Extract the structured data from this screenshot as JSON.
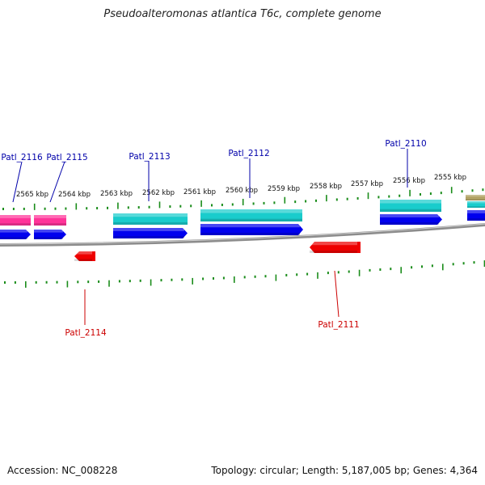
{
  "title": "Pseudoalteromonas atlantica T6c, complete genome",
  "accession_text": "Accession: NC_008228",
  "summary_text": "Topology: circular; Length: 5,187,005 bp; Genes: 4,364",
  "colors": {
    "pink": "#ff3399",
    "cyan": "#19cccc",
    "blue": "#0000ee",
    "red": "#ee0000",
    "olive": "#b3a466",
    "tick": "#1a8c1a",
    "backbone": "#8c8c8c",
    "label_top": "#0000aa",
    "label_bottom": "#cc0000"
  },
  "scale": {
    "kbp_labels": [
      "2565 kbp",
      "2564 kbp",
      "2563 kbp",
      "2562 kbp",
      "2561 kbp",
      "2560 kbp",
      "2559 kbp",
      "2558 kbp",
      "2557 kbp",
      "2556 kbp",
      "2555 kbp"
    ]
  },
  "genes_top": [
    {
      "label": "Patl_2116"
    },
    {
      "label": "Patl_2115"
    },
    {
      "label": "Patl_2113"
    },
    {
      "label": "Patl_2112"
    },
    {
      "label": "Patl_2110"
    }
  ],
  "genes_bottom": [
    {
      "label": "Patl_2114"
    },
    {
      "label": "Patl_2111"
    }
  ]
}
